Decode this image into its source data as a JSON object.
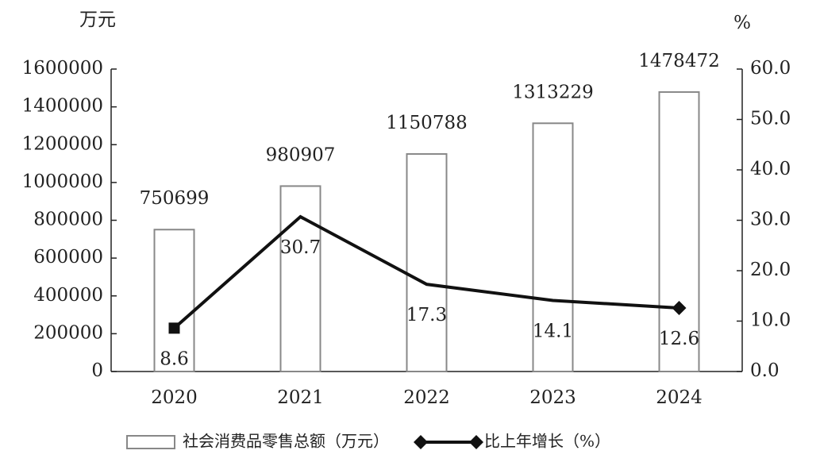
{
  "chart_data": {
    "type": "bar-line",
    "y_label": "万元",
    "y2_label": "%",
    "categories": [
      "2020",
      "2021",
      "2022",
      "2023",
      "2024"
    ],
    "series": [
      {
        "name": "社会消费品零售总额（万元）",
        "type": "bar",
        "color": "#888888",
        "values": [
          750699,
          980907,
          1150788,
          1313229,
          1478472
        ]
      },
      {
        "name": "比上年增长（%）",
        "type": "line",
        "axis": "y2",
        "color": "#111111",
        "values": [
          8.6,
          30.7,
          17.3,
          14.1,
          12.6
        ]
      }
    ],
    "ylim": [
      0,
      1600000
    ],
    "yticks": [
      0,
      200000,
      400000,
      600000,
      800000,
      1000000,
      1200000,
      1400000,
      1600000
    ],
    "y2lim": [
      0,
      60
    ],
    "y2ticks": [
      {
        "value": 0,
        "label": "0.0"
      },
      {
        "value": 10,
        "label": "10.0"
      },
      {
        "value": 20,
        "label": "20.0"
      },
      {
        "value": 30,
        "label": "30.0"
      },
      {
        "value": 40,
        "label": "40.0"
      },
      {
        "value": 50,
        "label": "50.0"
      },
      {
        "value": 60,
        "label": "60.0"
      }
    ],
    "legend": "bottom"
  }
}
